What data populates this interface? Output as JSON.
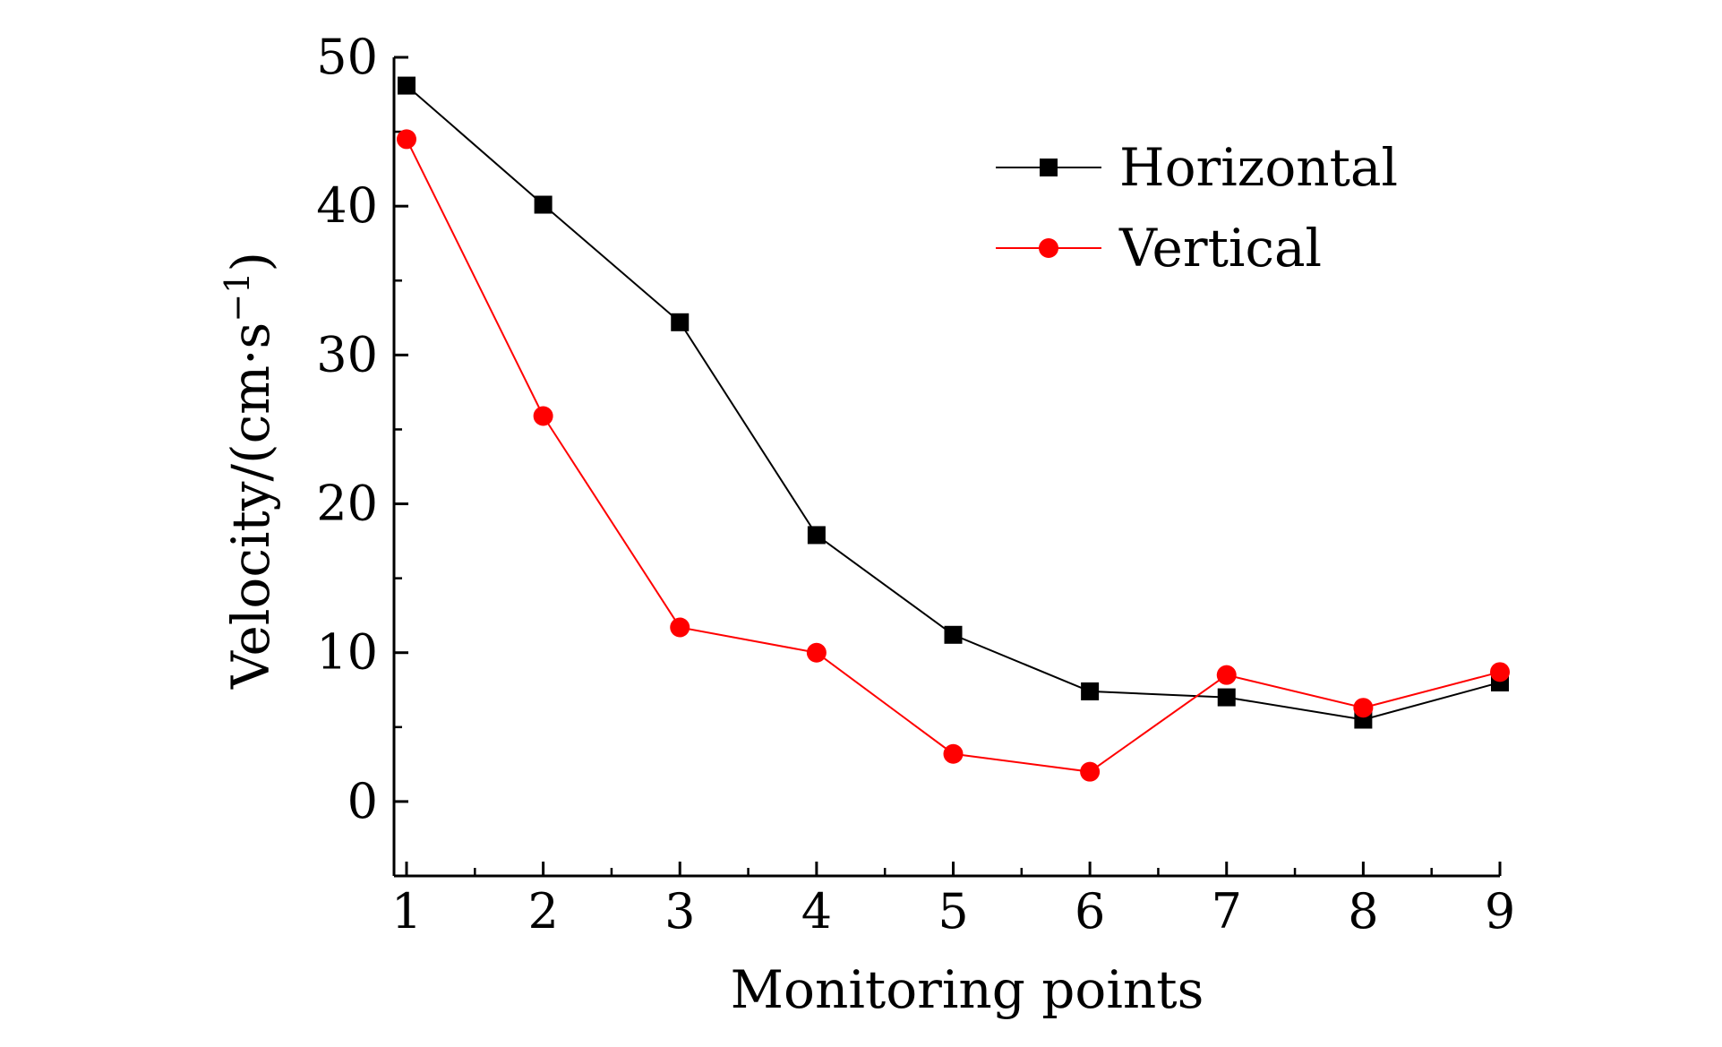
{
  "chart_data": {
    "type": "line",
    "title": "",
    "xlabel": "Monitoring points",
    "ylabel": "Velocity/(cm·s",
    "ylabel_sup": "−1",
    "ylabel_close": ")",
    "x": [
      1,
      2,
      3,
      4,
      5,
      6,
      7,
      8,
      9
    ],
    "xlim": [
      1,
      9
    ],
    "ylim": [
      -5,
      50
    ],
    "xticks": [
      1,
      2,
      3,
      4,
      5,
      6,
      7,
      8,
      9
    ],
    "yticks": [
      0,
      10,
      20,
      30,
      40,
      50
    ],
    "grid": false,
    "legend_position": "top-right",
    "series": [
      {
        "name": "Horizontal",
        "color": "#000000",
        "marker": "square",
        "values": [
          48.1,
          40.1,
          32.2,
          17.9,
          11.2,
          7.4,
          7.0,
          5.5,
          8.0
        ]
      },
      {
        "name": "Vertical",
        "color": "#ff0000",
        "marker": "circle",
        "values": [
          44.5,
          25.9,
          11.7,
          10.0,
          3.2,
          2.0,
          8.5,
          6.3,
          8.7
        ]
      }
    ]
  }
}
